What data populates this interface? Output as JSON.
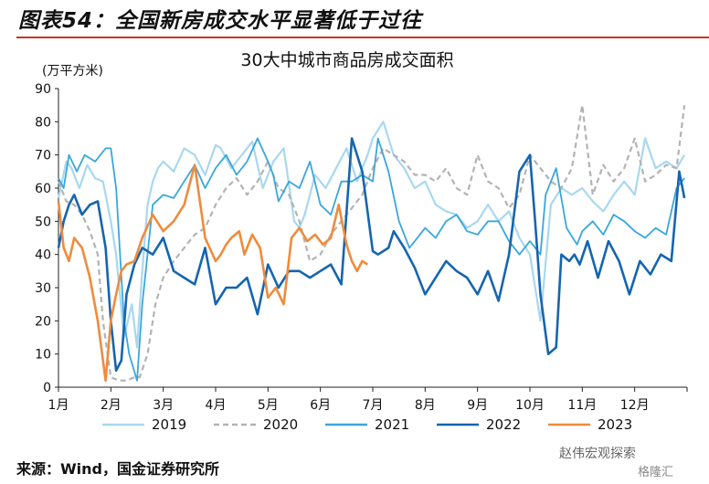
{
  "figure_title": "图表54：全国新房成交水平显著低于过往",
  "source": "来源：Wind，国金证券研究所",
  "watermark": "赵伟宏观探索",
  "watermark2": "格隆汇",
  "colors": {
    "2019": "#a8d8f0",
    "2020": "#b3b3b3",
    "2021": "#39a7dc",
    "2022": "#1565b0",
    "2023": "#f08b3c",
    "title_rule": "#c0392b"
  },
  "chart_data": {
    "type": "line",
    "title": "30大中城市商品房成交面积",
    "ylabel": "(万平方米)",
    "ylim": [
      0,
      90
    ],
    "yticks": [
      0,
      10,
      20,
      30,
      40,
      50,
      60,
      70,
      80,
      90
    ],
    "xlim": [
      0,
      12
    ],
    "categories": [
      "1月",
      "2月",
      "3月",
      "4月",
      "5月",
      "6月",
      "7月",
      "8月",
      "9月",
      "10月",
      "11月",
      "12月"
    ],
    "grid": false,
    "legend_position": "bottom",
    "series": [
      {
        "name": "2019",
        "style": "solid",
        "x": [
          0.0,
          0.15,
          0.25,
          0.4,
          0.55,
          0.7,
          0.85,
          1.0,
          1.1,
          1.25,
          1.4,
          1.5,
          1.6,
          1.7,
          1.8,
          1.9,
          2.0,
          2.2,
          2.4,
          2.6,
          2.8,
          3.0,
          3.1,
          3.3,
          3.5,
          3.7,
          3.9,
          4.1,
          4.3,
          4.5,
          4.6,
          4.7,
          4.9,
          5.1,
          5.3,
          5.5,
          5.7,
          5.9,
          6.0,
          6.2,
          6.4,
          6.6,
          6.8,
          7.0,
          7.2,
          7.4,
          7.6,
          7.8,
          8.0,
          8.2,
          8.4,
          8.6,
          8.8,
          9.0,
          9.2,
          9.4,
          9.6,
          9.8,
          10.0,
          10.2,
          10.4,
          10.6,
          10.8,
          11.0,
          11.2,
          11.4,
          11.6,
          11.8,
          11.95
        ],
        "y": [
          57,
          68,
          66,
          60,
          67,
          63,
          62,
          50,
          40,
          15,
          25,
          12,
          35,
          55,
          62,
          66,
          68,
          65,
          72,
          70,
          64,
          73,
          72,
          66,
          70,
          74,
          60,
          68,
          72,
          50,
          48,
          52,
          64,
          60,
          66,
          72,
          62,
          70,
          75,
          80,
          70,
          66,
          60,
          62,
          55,
          53,
          52,
          48,
          50,
          55,
          50,
          53,
          45,
          40,
          20,
          55,
          60,
          58,
          60,
          56,
          53,
          58,
          62,
          58,
          75,
          66,
          68,
          66,
          70
        ]
      },
      {
        "name": "2020",
        "style": "dashed",
        "x": [
          0.0,
          0.15,
          0.3,
          0.45,
          0.6,
          0.75,
          0.85,
          1.0,
          1.15,
          1.3,
          1.45,
          1.55,
          1.7,
          1.85,
          2.0,
          2.2,
          2.4,
          2.6,
          2.8,
          3.0,
          3.2,
          3.4,
          3.6,
          3.8,
          4.0,
          4.2,
          4.4,
          4.6,
          4.8,
          5.0,
          5.2,
          5.4,
          5.6,
          5.8,
          6.0,
          6.2,
          6.4,
          6.6,
          6.8,
          7.0,
          7.2,
          7.4,
          7.6,
          7.8,
          8.0,
          8.2,
          8.4,
          8.6,
          8.8,
          9.0,
          9.2,
          9.4,
          9.6,
          9.8,
          10.0,
          10.2,
          10.4,
          10.6,
          10.8,
          11.0,
          11.2,
          11.4,
          11.6,
          11.8,
          11.95
        ],
        "y": [
          62,
          56,
          55,
          52,
          47,
          40,
          20,
          3,
          2,
          2,
          3,
          3,
          10,
          25,
          33,
          38,
          42,
          46,
          48,
          55,
          60,
          63,
          58,
          62,
          68,
          60,
          58,
          50,
          38,
          40,
          46,
          50,
          54,
          58,
          66,
          72,
          70,
          68,
          64,
          64,
          62,
          66,
          60,
          58,
          70,
          62,
          60,
          54,
          58,
          70,
          66,
          62,
          60,
          66,
          85,
          58,
          67,
          62,
          66,
          75,
          62,
          64,
          67,
          66,
          85
        ]
      },
      {
        "name": "2021",
        "style": "solid",
        "x": [
          0.0,
          0.1,
          0.2,
          0.35,
          0.5,
          0.7,
          0.9,
          1.0,
          1.1,
          1.25,
          1.35,
          1.5,
          1.6,
          1.8,
          2.0,
          2.2,
          2.4,
          2.6,
          2.8,
          3.0,
          3.2,
          3.4,
          3.6,
          3.8,
          4.0,
          4.1,
          4.2,
          4.4,
          4.6,
          4.8,
          5.0,
          5.2,
          5.4,
          5.6,
          5.8,
          6.0,
          6.1,
          6.3,
          6.5,
          6.7,
          6.9,
          7.0,
          7.2,
          7.4,
          7.6,
          7.8,
          8.0,
          8.2,
          8.4,
          8.6,
          8.8,
          9.0,
          9.2,
          9.3,
          9.5,
          9.7,
          9.9,
          10.0,
          10.2,
          10.4,
          10.6,
          10.8,
          11.0,
          11.2,
          11.4,
          11.6,
          11.8,
          11.95
        ],
        "y": [
          63,
          60,
          70,
          65,
          70,
          68,
          72,
          72,
          60,
          20,
          10,
          2,
          25,
          55,
          58,
          57,
          62,
          67,
          60,
          66,
          70,
          64,
          68,
          75,
          68,
          64,
          56,
          62,
          60,
          68,
          55,
          52,
          62,
          62,
          64,
          62,
          75,
          65,
          50,
          42,
          46,
          48,
          45,
          50,
          52,
          47,
          46,
          50,
          50,
          44,
          40,
          44,
          40,
          58,
          66,
          48,
          43,
          47,
          50,
          46,
          52,
          50,
          47,
          45,
          48,
          46,
          60,
          63
        ]
      },
      {
        "name": "2022",
        "style": "solid",
        "x": [
          0.0,
          0.1,
          0.2,
          0.3,
          0.45,
          0.6,
          0.75,
          0.9,
          1.0,
          1.1,
          1.2,
          1.3,
          1.45,
          1.6,
          1.8,
          2.0,
          2.2,
          2.4,
          2.6,
          2.8,
          3.0,
          3.2,
          3.4,
          3.6,
          3.8,
          4.0,
          4.2,
          4.4,
          4.6,
          4.8,
          5.0,
          5.2,
          5.4,
          5.6,
          5.8,
          6.0,
          6.1,
          6.2,
          6.3,
          6.4,
          6.6,
          6.8,
          7.0,
          7.2,
          7.4,
          7.6,
          7.8,
          8.0,
          8.2,
          8.4,
          8.6,
          8.8,
          9.0,
          9.1,
          9.2,
          9.35,
          9.5,
          9.6,
          9.75,
          9.85,
          9.95,
          10.1,
          10.3,
          10.5,
          10.7,
          10.9,
          11.1,
          11.3,
          11.5,
          11.7,
          11.85,
          11.95
        ],
        "y": [
          42,
          50,
          55,
          58,
          52,
          55,
          56,
          42,
          20,
          5,
          8,
          28,
          37,
          42,
          40,
          45,
          35,
          33,
          31,
          42,
          25,
          30,
          30,
          33,
          22,
          37,
          30,
          35,
          35,
          33,
          35,
          37,
          31,
          75,
          65,
          41,
          40,
          41,
          42,
          47,
          42,
          36,
          28,
          33,
          38,
          35,
          33,
          28,
          35,
          26,
          40,
          65,
          70,
          50,
          28,
          10,
          12,
          40,
          38,
          40,
          37,
          44,
          33,
          44,
          38,
          28,
          38,
          34,
          40,
          38,
          65,
          57
        ]
      },
      {
        "name": "2023",
        "style": "solid",
        "x": [
          0.0,
          0.1,
          0.2,
          0.3,
          0.45,
          0.6,
          0.75,
          0.9,
          1.0,
          1.1,
          1.2,
          1.3,
          1.45,
          1.6,
          1.8,
          2.0,
          2.2,
          2.4,
          2.6,
          2.8,
          3.0,
          3.1,
          3.2,
          3.3,
          3.45,
          3.55,
          3.7,
          3.85,
          4.0,
          4.15,
          4.3,
          4.45,
          4.6,
          4.75,
          4.9,
          5.05,
          5.2,
          5.35,
          5.5,
          5.6,
          5.7,
          5.8,
          5.9
        ],
        "y": [
          56,
          42,
          38,
          45,
          42,
          33,
          20,
          2,
          20,
          28,
          35,
          37,
          38,
          45,
          52,
          47,
          50,
          55,
          67,
          45,
          38,
          40,
          43,
          45,
          47,
          40,
          46,
          42,
          27,
          30,
          25,
          45,
          48,
          44,
          46,
          43,
          45,
          55,
          43,
          38,
          35,
          38,
          37
        ]
      }
    ]
  }
}
